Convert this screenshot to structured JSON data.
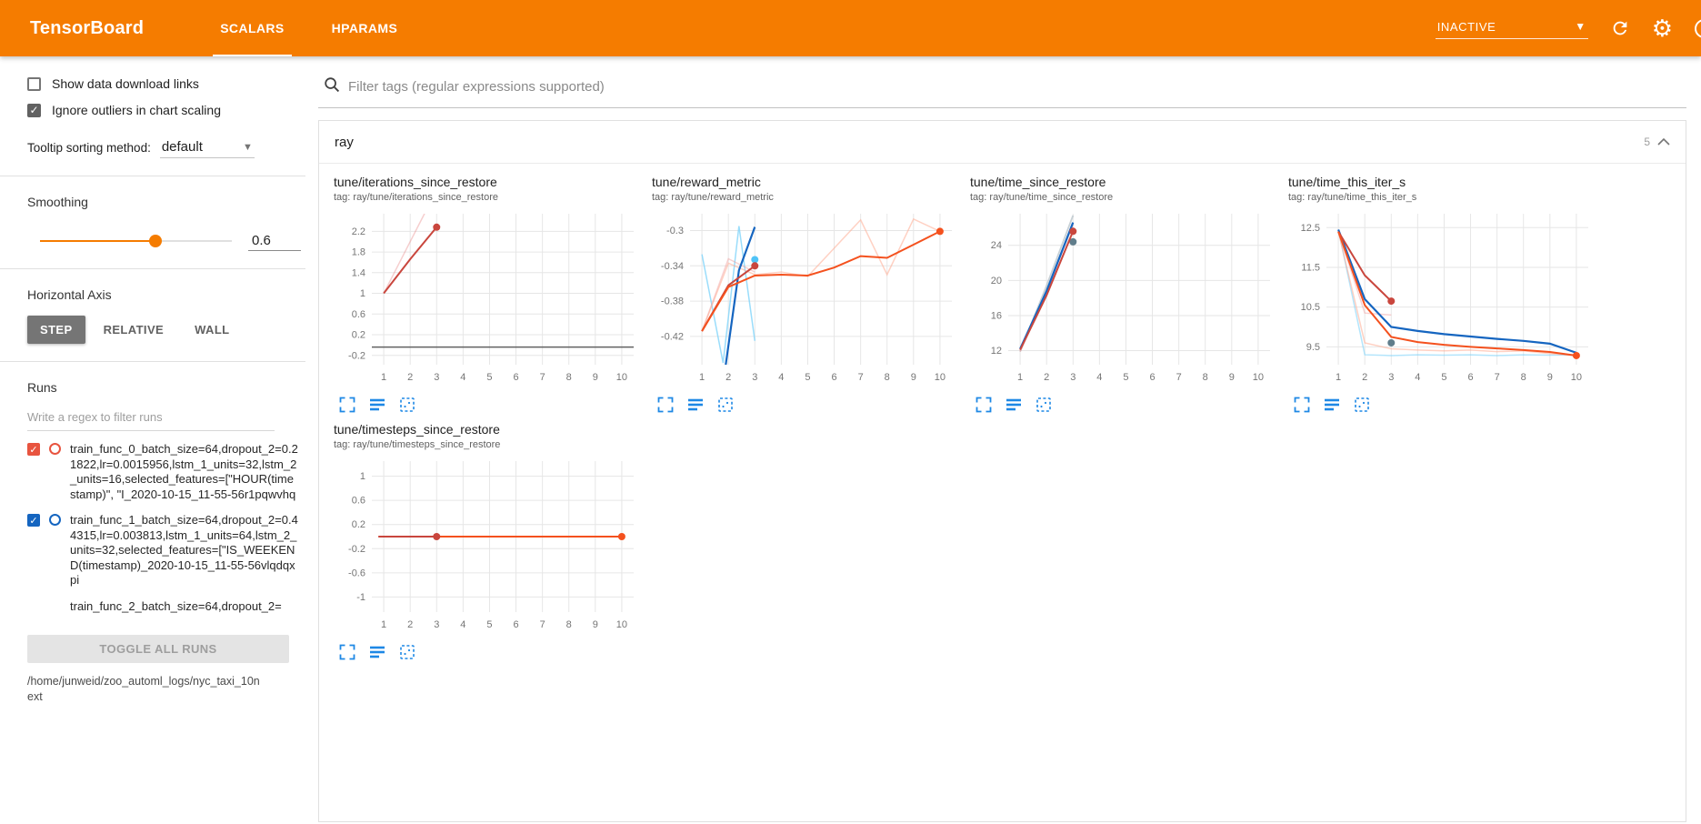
{
  "header": {
    "title": "TensorBoard",
    "tabs": [
      {
        "label": "SCALARS"
      },
      {
        "label": "HPARAMS"
      }
    ],
    "status": "INACTIVE",
    "help": "?"
  },
  "sidebar": {
    "show_download": {
      "label": "Show data download links",
      "checked": false
    },
    "ignore_outliers": {
      "label": "Ignore outliers in chart scaling",
      "checked": true
    },
    "tooltip_sorting": {
      "label": "Tooltip sorting method:",
      "value": "default"
    },
    "smoothing": {
      "label": "Smoothing",
      "value": "0.6",
      "percent": 60
    },
    "horizontal_axis": {
      "label": "Horizontal Axis",
      "options": [
        "STEP",
        "RELATIVE",
        "WALL"
      ],
      "selected": "STEP"
    },
    "runs": {
      "label": "Runs",
      "filter_placeholder": "Write a regex to filter runs",
      "items": [
        {
          "label": "train_func_0_batch_size=64,dropout_2=0.21822,lr=0.0015956,lstm_1_units=32,lstm_2_units=16,selected_features=[\"HOUR(timestamp)\", \"I_2020-10-15_11-55-56r1pqwvhq",
          "checked": true,
          "color": "#e8543f"
        },
        {
          "label": "train_func_1_batch_size=64,dropout_2=0.44315,lr=0.003813,lstm_1_units=64,lstm_2_units=32,selected_features=[\"IS_WEEKEND(timestamp)_2020-10-15_11-55-56vlqdqxpi",
          "checked": true,
          "color": "#1565c0"
        },
        {
          "label": "train_func_2_batch_size=64,dropout_2=",
          "checked": true,
          "color": "#f4511e"
        }
      ],
      "toggle_all_label": "TOGGLE ALL RUNS",
      "log_dir": "/home/junweid/zoo_automl_logs/nyc_taxi_10next"
    }
  },
  "main": {
    "filter_placeholder": "Filter tags (regular expressions supported)",
    "section": {
      "title": "ray",
      "count": "5"
    }
  },
  "chart_data": [
    {
      "type": "line",
      "title": "tune/iterations_since_restore",
      "subtitle": "tag: ray/tune/iterations_since_restore",
      "xlim": [
        0.55,
        10.45
      ],
      "ylim": [
        -0.38,
        2.54
      ],
      "xticks": [
        1,
        2,
        3,
        4,
        5,
        6,
        7,
        8,
        9,
        10
      ],
      "yticks": [
        -0.2,
        0.2,
        0.6,
        1,
        1.4,
        1.8,
        2.2
      ],
      "series": [
        {
          "name": "train_func_0 raw",
          "color": "#e57373",
          "opacity": 0.35,
          "width": 1.5,
          "x": [
            1,
            2,
            3
          ],
          "y": [
            1,
            2,
            3
          ]
        },
        {
          "name": "train_func_2",
          "color": "#616161",
          "opacity": 1,
          "width": 1.5,
          "x": [
            0.55,
            10.45
          ],
          "y": [
            -0.04,
            -0.04
          ]
        },
        {
          "name": "train_func_0 smoothed",
          "color": "#c9463d",
          "opacity": 1,
          "width": 2,
          "x": [
            1,
            2,
            3
          ],
          "y": [
            1,
            1.66,
            2.28
          ],
          "dot": true
        }
      ]
    },
    {
      "type": "line",
      "title": "tune/reward_metric",
      "subtitle": "tag: ray/tune/reward_metric",
      "xlim": [
        0.55,
        10.45
      ],
      "ylim": [
        -0.452,
        -0.281
      ],
      "xticks": [
        1,
        2,
        3,
        4,
        5,
        6,
        7,
        8,
        9,
        10
      ],
      "yticks": [
        -0.42,
        -0.38,
        -0.34,
        -0.3
      ],
      "series": [
        {
          "name": "train_func_1 raw",
          "color": "#81d4fa",
          "opacity": 0.8,
          "width": 1.5,
          "x": [
            1,
            1.8,
            2.4,
            3
          ],
          "y": [
            -0.327,
            -0.45,
            -0.295,
            -0.425
          ]
        },
        {
          "name": "train_func_0 raw",
          "color": "#ef9a9a",
          "opacity": 0.45,
          "width": 1.5,
          "x": [
            1,
            2,
            3
          ],
          "y": [
            -0.414,
            -0.332,
            -0.347
          ]
        },
        {
          "name": "train_func_2 raw",
          "color": "#ffab91",
          "opacity": 0.55,
          "width": 1.5,
          "x": [
            1,
            2,
            3,
            4,
            5,
            6,
            7,
            8,
            9,
            10
          ],
          "y": [
            -0.414,
            -0.337,
            -0.35,
            -0.347,
            -0.352,
            -0.32,
            -0.288,
            -0.35,
            -0.287,
            -0.301
          ]
        },
        {
          "name": "train_func_1 smoothed",
          "color": "#1565c0",
          "opacity": 1,
          "width": 2.2,
          "x": [
            1.9,
            2.4,
            3
          ],
          "y": [
            -0.452,
            -0.345,
            -0.296
          ]
        },
        {
          "name": "train_func_1 final",
          "color": "#4fc3f7",
          "opacity": 1,
          "width": 0,
          "x": [
            3
          ],
          "y": [
            -0.333
          ],
          "dot": true
        },
        {
          "name": "train_func_0 smoothed",
          "color": "#c9463d",
          "opacity": 1,
          "width": 2,
          "x": [
            1,
            2,
            3
          ],
          "y": [
            -0.414,
            -0.362,
            -0.34
          ],
          "dot": true
        },
        {
          "name": "train_func_2 smoothed",
          "color": "#f4511e",
          "opacity": 1,
          "width": 2,
          "x": [
            1,
            2,
            3,
            4,
            5,
            6,
            7,
            8,
            9,
            10
          ],
          "y": [
            -0.414,
            -0.364,
            -0.351,
            -0.35,
            -0.351,
            -0.342,
            -0.329,
            -0.331,
            -0.316,
            -0.301
          ],
          "dot": true
        }
      ]
    },
    {
      "type": "line",
      "title": "tune/time_since_restore",
      "subtitle": "tag: ray/tune/time_since_restore",
      "xlim": [
        0.55,
        10.45
      ],
      "ylim": [
        10.4,
        27.6
      ],
      "xticks": [
        1,
        2,
        3,
        4,
        5,
        6,
        7,
        8,
        9,
        10
      ],
      "yticks": [
        12,
        16,
        20,
        24
      ],
      "series": [
        {
          "name": "raw gray",
          "color": "#b0bec5",
          "opacity": 0.7,
          "width": 1.8,
          "x": [
            1,
            2,
            3
          ],
          "y": [
            11.9,
            19.4,
            27.4
          ]
        },
        {
          "name": "raw pink",
          "color": "#ef9a9a",
          "opacity": 0.5,
          "width": 1.8,
          "x": [
            1,
            2,
            3
          ],
          "y": [
            11.9,
            18.7,
            26.4
          ]
        },
        {
          "name": "train_func_1 smoothed",
          "color": "#1565c0",
          "opacity": 1,
          "width": 2.2,
          "x": [
            1,
            2,
            3
          ],
          "y": [
            12.2,
            18.8,
            26.6
          ]
        },
        {
          "name": "train_func_1 final",
          "color": "#607d8b",
          "opacity": 1,
          "width": 0,
          "x": [
            3
          ],
          "y": [
            24.4
          ],
          "dot": true
        },
        {
          "name": "train_func_0 smoothed",
          "color": "#c9463d",
          "opacity": 1,
          "width": 2,
          "x": [
            1,
            2,
            3
          ],
          "y": [
            12.1,
            18.3,
            25.6
          ],
          "dot": true
        }
      ]
    },
    {
      "type": "line",
      "title": "tune/time_this_iter_s",
      "subtitle": "tag: ray/tune/time_this_iter_s",
      "xlim": [
        0.55,
        10.45
      ],
      "ylim": [
        9.05,
        12.85
      ],
      "xticks": [
        1,
        2,
        3,
        4,
        5,
        6,
        7,
        8,
        9,
        10
      ],
      "yticks": [
        9.5,
        10.5,
        11.5,
        12.5
      ],
      "series": [
        {
          "name": "train_func_1 raw",
          "color": "#81d4fa",
          "opacity": 0.6,
          "width": 1.5,
          "x": [
            1,
            2,
            3,
            4,
            5,
            6,
            7,
            8,
            9,
            10
          ],
          "y": [
            12.45,
            9.3,
            9.28,
            9.3,
            9.29,
            9.3,
            9.28,
            9.3,
            9.29,
            9.3
          ]
        },
        {
          "name": "train_func_2 raw",
          "color": "#ffab91",
          "opacity": 0.55,
          "width": 1.5,
          "x": [
            1,
            2,
            3,
            4,
            5,
            6,
            7,
            8,
            9,
            10
          ],
          "y": [
            12.4,
            9.6,
            9.45,
            9.42,
            9.4,
            9.42,
            9.38,
            9.4,
            9.33,
            9.28
          ]
        },
        {
          "name": "train_func_0 raw",
          "color": "#ef9a9a",
          "opacity": 0.45,
          "width": 1.5,
          "x": [
            1,
            2,
            3
          ],
          "y": [
            12.4,
            10.35,
            10.3
          ]
        },
        {
          "name": "train_func_1 smoothed",
          "color": "#1565c0",
          "opacity": 1,
          "width": 2.2,
          "x": [
            1,
            2,
            3,
            4,
            5,
            6,
            7,
            8,
            9,
            10
          ],
          "y": [
            12.45,
            10.7,
            10.0,
            9.9,
            9.82,
            9.76,
            9.7,
            9.65,
            9.58,
            9.35
          ]
        },
        {
          "name": "train_func_1 final",
          "color": "#607d8b",
          "opacity": 1,
          "width": 0,
          "x": [
            3
          ],
          "y": [
            9.6
          ],
          "dot": true
        },
        {
          "name": "train_func_0 smoothed",
          "color": "#c9463d",
          "opacity": 1,
          "width": 2,
          "x": [
            1,
            2,
            3
          ],
          "y": [
            12.4,
            11.3,
            10.65
          ],
          "dot": true
        },
        {
          "name": "train_func_2 smoothed",
          "color": "#f4511e",
          "opacity": 1,
          "width": 2,
          "x": [
            1,
            2,
            3,
            4,
            5,
            6,
            7,
            8,
            9,
            10
          ],
          "y": [
            12.4,
            10.55,
            9.75,
            9.62,
            9.55,
            9.5,
            9.46,
            9.42,
            9.37,
            9.28
          ],
          "dot": true
        }
      ]
    },
    {
      "type": "line",
      "title": "tune/timesteps_since_restore",
      "subtitle": "tag: ray/tune/timesteps_since_restore",
      "xlim": [
        0.55,
        10.45
      ],
      "ylim": [
        -1.25,
        1.25
      ],
      "xticks": [
        1,
        2,
        3,
        4,
        5,
        6,
        7,
        8,
        9,
        10
      ],
      "yticks": [
        -1,
        -0.6,
        -0.2,
        0.2,
        0.6,
        1
      ],
      "series": [
        {
          "name": "train_func_2 smoothed",
          "color": "#f4511e",
          "opacity": 1,
          "width": 2,
          "x": [
            0.8,
            10
          ],
          "y": [
            0,
            0
          ],
          "dot": true
        },
        {
          "name": "train_func_0 smoothed",
          "color": "#c9463d",
          "opacity": 1,
          "width": 2,
          "x": [
            0.8,
            3
          ],
          "y": [
            0,
            0
          ],
          "dot": true
        }
      ]
    }
  ]
}
